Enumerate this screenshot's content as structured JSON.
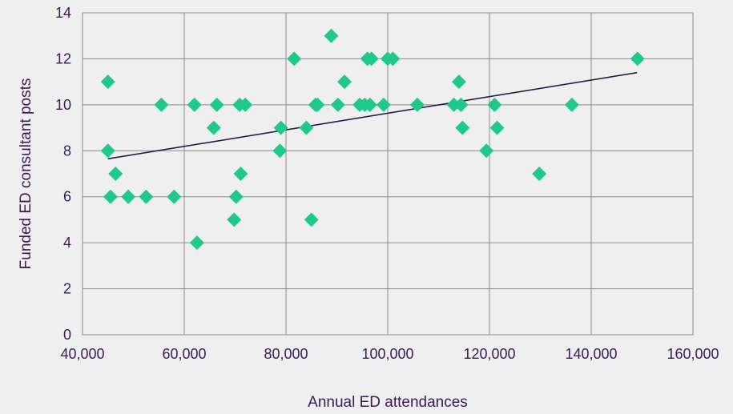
{
  "colors": {
    "background": "#efefef",
    "marker": "#1fc98a",
    "trendline": "#2a1a4a",
    "text": "#3a1a5a",
    "grid": "#8c8c8c"
  },
  "chart_data": {
    "type": "scatter",
    "title": "",
    "xlabel": "Annual ED attendances",
    "ylabel": "Funded  ED consultant  posts",
    "xlim": [
      40000,
      160000
    ],
    "ylim": [
      0,
      14
    ],
    "x_ticks": [
      40000,
      60000,
      80000,
      100000,
      120000,
      140000,
      160000
    ],
    "x_tick_labels": [
      "40,000",
      "60,000",
      "80,000",
      "100,000",
      "120,000",
      "140,000",
      "160,000"
    ],
    "y_ticks": [
      0,
      2,
      4,
      6,
      8,
      10,
      12,
      14
    ],
    "y_tick_labels": [
      "0",
      "2",
      "4",
      "6",
      "8",
      "10",
      "12",
      "14"
    ],
    "grid": true,
    "legend": "none",
    "marker": "diamond",
    "points": [
      {
        "x": 45000,
        "y": 11
      },
      {
        "x": 45000,
        "y": 8
      },
      {
        "x": 45500,
        "y": 6
      },
      {
        "x": 46500,
        "y": 7
      },
      {
        "x": 49000,
        "y": 6
      },
      {
        "x": 52500,
        "y": 6
      },
      {
        "x": 55500,
        "y": 10
      },
      {
        "x": 58000,
        "y": 6
      },
      {
        "x": 62000,
        "y": 10
      },
      {
        "x": 62500,
        "y": 4
      },
      {
        "x": 65800,
        "y": 9
      },
      {
        "x": 66400,
        "y": 10
      },
      {
        "x": 69800,
        "y": 5
      },
      {
        "x": 70200,
        "y": 6
      },
      {
        "x": 70900,
        "y": 10
      },
      {
        "x": 71100,
        "y": 7
      },
      {
        "x": 72000,
        "y": 10
      },
      {
        "x": 78800,
        "y": 8
      },
      {
        "x": 79000,
        "y": 9
      },
      {
        "x": 81600,
        "y": 12
      },
      {
        "x": 84000,
        "y": 9
      },
      {
        "x": 85000,
        "y": 5
      },
      {
        "x": 85800,
        "y": 10
      },
      {
        "x": 86200,
        "y": 10
      },
      {
        "x": 88900,
        "y": 13
      },
      {
        "x": 90200,
        "y": 10
      },
      {
        "x": 91500,
        "y": 11
      },
      {
        "x": 94500,
        "y": 10
      },
      {
        "x": 95500,
        "y": 10
      },
      {
        "x": 96000,
        "y": 12
      },
      {
        "x": 96500,
        "y": 10
      },
      {
        "x": 96800,
        "y": 12
      },
      {
        "x": 99200,
        "y": 10
      },
      {
        "x": 100000,
        "y": 12
      },
      {
        "x": 101000,
        "y": 12
      },
      {
        "x": 105800,
        "y": 10
      },
      {
        "x": 113000,
        "y": 10
      },
      {
        "x": 114000,
        "y": 11
      },
      {
        "x": 114400,
        "y": 10
      },
      {
        "x": 114700,
        "y": 9
      },
      {
        "x": 119400,
        "y": 8
      },
      {
        "x": 121000,
        "y": 10
      },
      {
        "x": 121500,
        "y": 9
      },
      {
        "x": 129800,
        "y": 7
      },
      {
        "x": 136200,
        "y": 10
      },
      {
        "x": 149100,
        "y": 12
      }
    ],
    "trendline": {
      "x": [
        45000,
        149000
      ],
      "y": [
        7.65,
        11.4
      ]
    }
  }
}
